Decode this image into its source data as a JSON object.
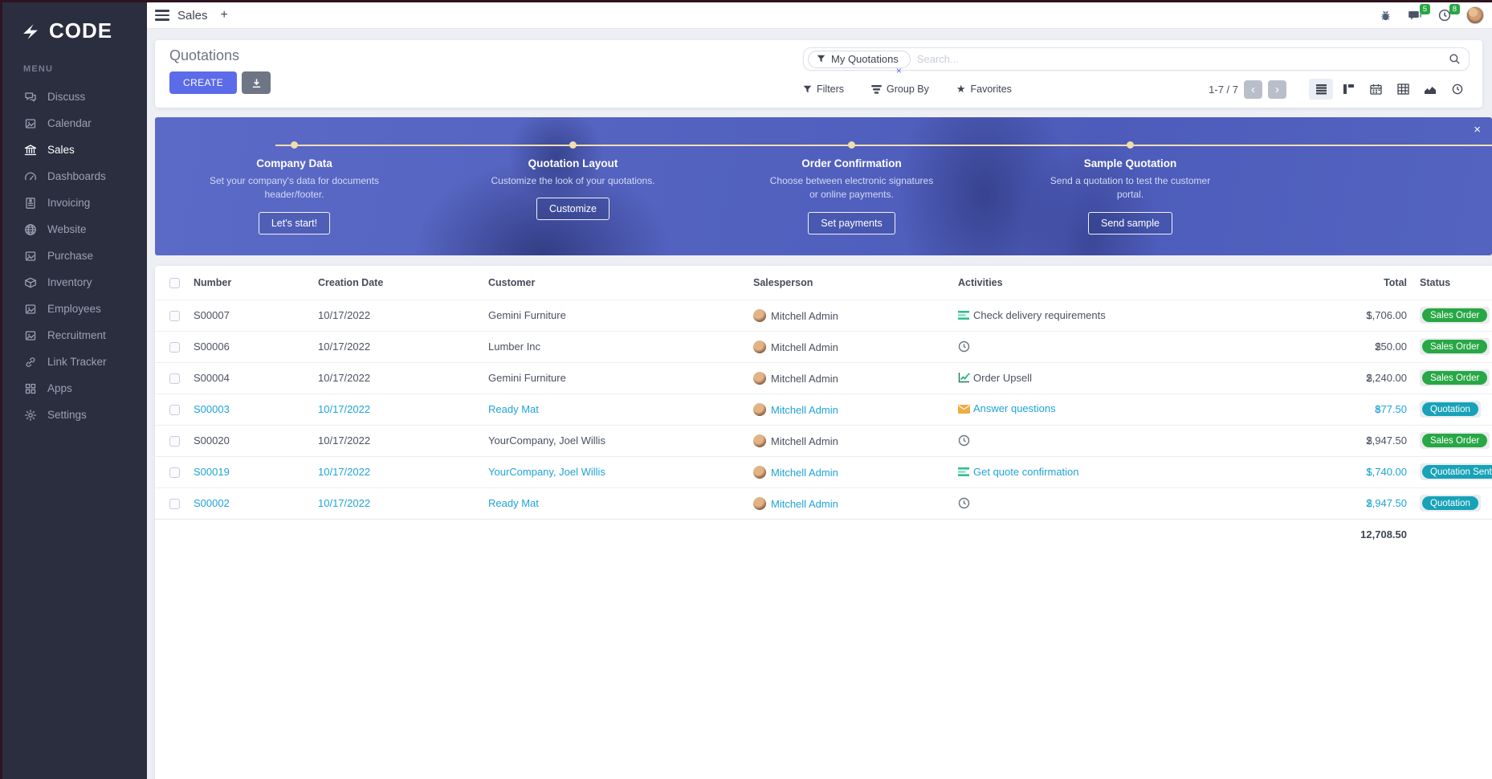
{
  "topbar": {
    "app_label": "Sales",
    "new_tab_label": "+",
    "message_count": "5",
    "activity_count": "8"
  },
  "sidebar": {
    "logo_text": "CODE",
    "menu_label": "MENU",
    "items": [
      {
        "label": "Discuss",
        "icon": "discuss",
        "active": false
      },
      {
        "label": "Calendar",
        "icon": "image",
        "active": false
      },
      {
        "label": "Sales",
        "icon": "building",
        "active": true
      },
      {
        "label": "Dashboards",
        "icon": "gauge",
        "active": false
      },
      {
        "label": "Invoicing",
        "icon": "invoice",
        "active": false
      },
      {
        "label": "Website",
        "icon": "globe",
        "active": false
      },
      {
        "label": "Purchase",
        "icon": "image",
        "active": false
      },
      {
        "label": "Inventory",
        "icon": "box",
        "active": false
      },
      {
        "label": "Employees",
        "icon": "image",
        "active": false
      },
      {
        "label": "Recruitment",
        "icon": "image",
        "active": false
      },
      {
        "label": "Link Tracker",
        "icon": "link",
        "active": false
      },
      {
        "label": "Apps",
        "icon": "apps",
        "active": false
      },
      {
        "label": "Settings",
        "icon": "gear",
        "active": false
      }
    ]
  },
  "control_panel": {
    "title": "Quotations",
    "create_label": "CREATE",
    "filters_label": "Filters",
    "group_by_label": "Group By",
    "favorites_label": "Favorites",
    "pager": "1-7 / 7",
    "prev_label": "‹",
    "next_label": "›",
    "search": {
      "facet_label": "My Quotations",
      "facet_remove": "×",
      "placeholder": "Search..."
    }
  },
  "banner": {
    "close_label": "×",
    "steps": [
      {
        "title": "Company Data",
        "description": "Set your company's data for documents header/footer.",
        "button": "Let's start!"
      },
      {
        "title": "Quotation Layout",
        "description": "Customize the look of your quotations.",
        "button": "Customize"
      },
      {
        "title": "Order Confirmation",
        "description": "Choose between electronic signatures or online payments.",
        "button": "Set payments"
      },
      {
        "title": "Sample Quotation",
        "description": "Send a quotation to test the customer portal.",
        "button": "Send sample"
      }
    ]
  },
  "table": {
    "columns": {
      "number": "Number",
      "date": "Creation Date",
      "customer": "Customer",
      "salesperson": "Salesperson",
      "activities": "Activities",
      "total": "Total",
      "status": "Status"
    },
    "rows": [
      {
        "number": "S00007",
        "date": "10/17/2022",
        "customer": "Gemini Furniture",
        "salesperson": "Mitchell Admin",
        "activity_icon": "tasks",
        "activity_label": "Check delivery requirements",
        "currency": "$",
        "total": "1,706.00",
        "status": "Sales Order",
        "status_color": "green",
        "state": "order"
      },
      {
        "number": "S00006",
        "date": "10/17/2022",
        "customer": "Lumber Inc",
        "salesperson": "Mitchell Admin",
        "activity_icon": "clock",
        "activity_label": "",
        "currency": "$",
        "total": "250.00",
        "status": "Sales Order",
        "status_color": "green",
        "state": "order"
      },
      {
        "number": "S00004",
        "date": "10/17/2022",
        "customer": "Gemini Furniture",
        "salesperson": "Mitchell Admin",
        "activity_icon": "chart",
        "activity_label": "Order Upsell",
        "currency": "$",
        "total": "2,240.00",
        "status": "Sales Order",
        "status_color": "green",
        "state": "order"
      },
      {
        "number": "S00003",
        "date": "10/17/2022",
        "customer": "Ready Mat",
        "salesperson": "Mitchell Admin",
        "activity_icon": "envelope",
        "activity_label": "Answer questions",
        "currency": "$",
        "total": "877.50",
        "status": "Quotation",
        "status_color": "teal",
        "state": "quotation"
      },
      {
        "number": "S00020",
        "date": "10/17/2022",
        "customer": "YourCompany, Joel Willis",
        "salesperson": "Mitchell Admin",
        "activity_icon": "clock",
        "activity_label": "",
        "currency": "$",
        "total": "2,947.50",
        "status": "Sales Order",
        "status_color": "green",
        "state": "order"
      },
      {
        "number": "S00019",
        "date": "10/17/2022",
        "customer": "YourCompany, Joel Willis",
        "salesperson": "Mitchell Admin",
        "activity_icon": "tasks",
        "activity_label": "Get quote confirmation",
        "currency": "$",
        "total": "1,740.00",
        "status": "Quotation Sent",
        "status_color": "teal",
        "state": "quotation"
      },
      {
        "number": "S00002",
        "date": "10/17/2022",
        "customer": "Ready Mat",
        "salesperson": "Mitchell Admin",
        "activity_icon": "clock",
        "activity_label": "",
        "currency": "$",
        "total": "2,947.50",
        "status": "Quotation",
        "status_color": "teal",
        "state": "quotation"
      }
    ],
    "sum_total": "12,708.50"
  },
  "colors": {
    "accent": "#5c6be8",
    "sidebar_bg": "#2a2e3f",
    "badge_green": "#28a745",
    "badge_teal": "#17a2b8",
    "quotation_text": "#1fa4d6",
    "banner_blue": "#5363c0",
    "timeline_cream": "#f2ddae"
  }
}
